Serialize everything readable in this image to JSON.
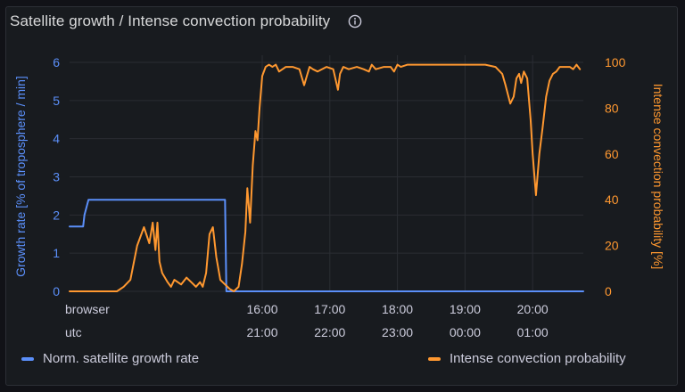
{
  "panel": {
    "title": "Satellite growth / Intense convection probability",
    "info_icon": "info-circle-icon"
  },
  "legend": [
    {
      "label": "Norm. satellite growth rate",
      "color": "#5b8ff9"
    },
    {
      "label": "Intense convection probability",
      "color": "#ff9830"
    }
  ],
  "chart_data": {
    "type": "line",
    "x_axis": {
      "rows": [
        {
          "label": "browser",
          "ticks": [
            "16:00",
            "17:00",
            "18:00",
            "19:00",
            "20:00"
          ]
        },
        {
          "label": "utc",
          "ticks": [
            "21:00",
            "22:00",
            "23:00",
            "00:00",
            "01:00"
          ]
        }
      ],
      "tick_hours": [
        16,
        17,
        18,
        19,
        20
      ],
      "range_hours": [
        13.15,
        20.75
      ]
    },
    "y_left": {
      "label": "Growth rate [% of troposphere / min]",
      "range": [
        0,
        6
      ],
      "ticks": [
        "0",
        "1",
        "2",
        "3",
        "4",
        "5",
        "6"
      ],
      "color": "#5b8ff9"
    },
    "y_right": {
      "label": "Intense convection probability [%]",
      "range": [
        0,
        100
      ],
      "ticks": [
        "0",
        "20",
        "40",
        "60",
        "80",
        "100"
      ],
      "color": "#ff9830"
    },
    "grid": true,
    "legend_position": "bottom",
    "series": [
      {
        "name": "Norm. satellite growth rate",
        "axis": "left",
        "color": "#5b8ff9",
        "x": [
          13.15,
          13.35,
          13.37,
          13.43,
          15.45,
          15.47,
          15.55,
          20.75
        ],
        "y": [
          1.7,
          1.7,
          2.0,
          2.4,
          2.4,
          0.0,
          0.0,
          0.0
        ]
      },
      {
        "name": "Intense convection probability",
        "axis": "right",
        "color": "#ff9830",
        "x": [
          13.15,
          13.55,
          13.85,
          13.95,
          14.05,
          14.15,
          14.25,
          14.33,
          14.38,
          14.42,
          14.45,
          14.48,
          14.52,
          14.56,
          14.6,
          14.65,
          14.7,
          14.8,
          14.88,
          14.95,
          15.02,
          15.08,
          15.12,
          15.17,
          15.22,
          15.27,
          15.32,
          15.38,
          15.45,
          15.52,
          15.58,
          15.65,
          15.7,
          15.75,
          15.78,
          15.82,
          15.86,
          15.9,
          15.93,
          15.96,
          16.0,
          16.05,
          16.1,
          16.15,
          16.2,
          16.25,
          16.35,
          16.45,
          16.55,
          16.62,
          16.66,
          16.7,
          16.75,
          16.82,
          16.95,
          17.05,
          17.12,
          17.15,
          17.2,
          17.28,
          17.4,
          17.5,
          17.58,
          17.62,
          17.68,
          17.8,
          17.9,
          17.95,
          18.0,
          18.05,
          18.15,
          18.3,
          18.5,
          18.7,
          18.9,
          19.1,
          19.3,
          19.45,
          19.55,
          19.6,
          19.67,
          19.72,
          19.76,
          19.8,
          19.83,
          19.87,
          19.92,
          19.97,
          20.0,
          20.05,
          20.1,
          20.15,
          20.2,
          20.25,
          20.3,
          20.35,
          20.4,
          20.45,
          20.55,
          20.6,
          20.65,
          20.7
        ],
        "y": [
          0,
          0,
          0,
          2,
          5,
          20,
          28,
          21,
          30,
          18,
          30,
          13,
          8,
          6,
          4,
          2,
          5,
          3,
          6,
          4,
          2,
          4,
          2,
          8,
          25,
          28,
          15,
          5,
          3,
          1,
          0,
          2,
          12,
          26,
          45,
          30,
          55,
          70,
          66,
          80,
          94,
          98,
          99,
          98,
          99,
          96,
          98,
          98,
          97,
          90,
          94,
          98,
          97,
          96,
          98,
          97,
          88,
          95,
          98,
          97,
          98,
          97,
          96,
          99,
          97,
          98,
          98,
          96,
          99,
          98,
          99,
          99,
          99,
          99,
          99,
          99,
          99,
          98,
          95,
          90,
          82,
          85,
          93,
          95,
          91,
          96,
          93,
          75,
          60,
          42,
          60,
          72,
          85,
          92,
          95,
          96,
          98,
          98,
          98,
          97,
          99,
          97
        ]
      }
    ]
  }
}
